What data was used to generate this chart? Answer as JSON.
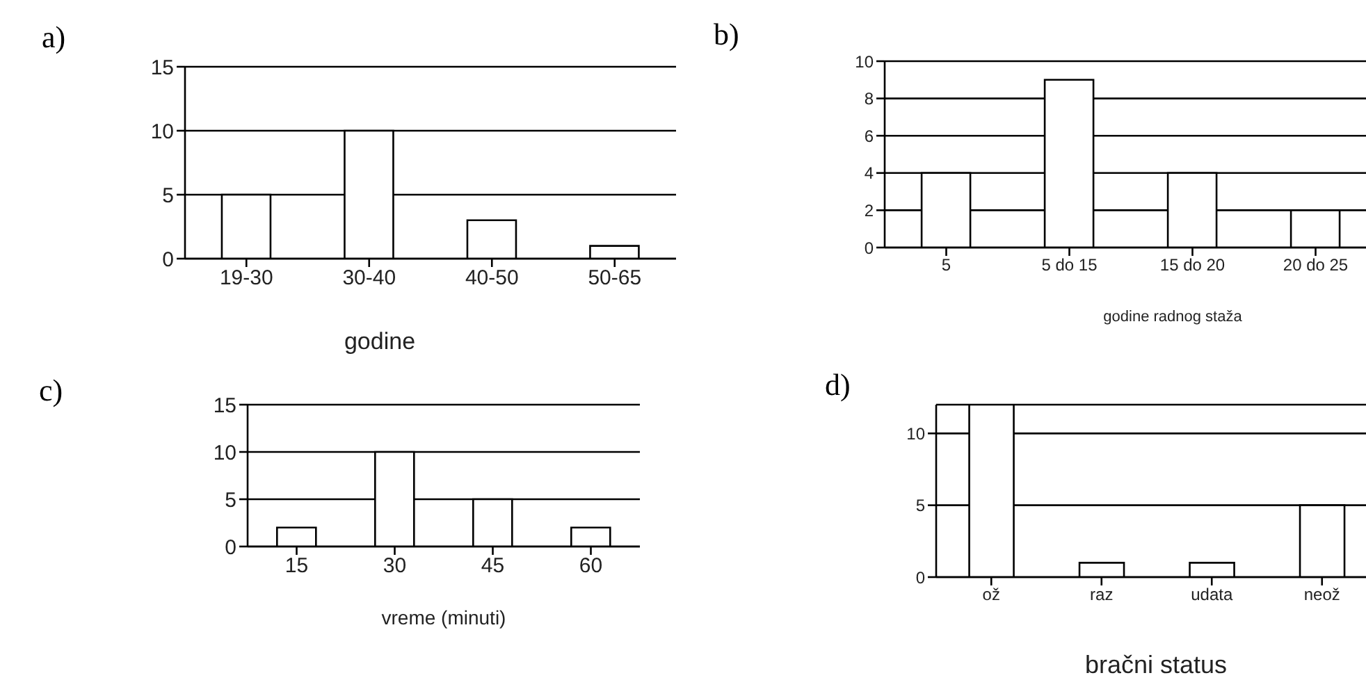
{
  "chart_data": [
    {
      "type": "bar",
      "title": "a)",
      "xlabel": "godine",
      "categories": [
        "19-30",
        "30-40",
        "40-50",
        "50-65"
      ],
      "values": [
        5,
        10,
        3,
        1
      ],
      "color": "#ffffff",
      "ylim": [
        0,
        15
      ],
      "yticks": [
        0,
        5,
        10,
        15
      ],
      "grid": "y",
      "legend": false
    },
    {
      "type": "bar",
      "title": "b)",
      "xlabel": "godine radnog staža",
      "categories": [
        "5",
        "5 do 15",
        "15 do 20",
        "20 do 25"
      ],
      "values": [
        4,
        9,
        4,
        2
      ],
      "color": "#ffffff",
      "ylim": [
        0,
        10
      ],
      "yticks": [
        0,
        2,
        4,
        6,
        8,
        10
      ],
      "grid": "y",
      "legend": false
    },
    {
      "type": "bar",
      "title": "c)",
      "xlabel": "vreme (minuti)",
      "categories": [
        "15",
        "30",
        "45",
        "60"
      ],
      "values": [
        2,
        10,
        5,
        2
      ],
      "color": "#ffffff",
      "ylim": [
        0,
        15
      ],
      "yticks": [
        0,
        5,
        10,
        15
      ],
      "grid": "y",
      "legend": false
    },
    {
      "type": "bar",
      "title": "d)",
      "xlabel": "bračni status",
      "categories": [
        "ož",
        "raz",
        "udata",
        "neož"
      ],
      "values": [
        12,
        1,
        1,
        5
      ],
      "color": "#ffffff",
      "ylim": [
        0,
        12
      ],
      "yticks": [
        0,
        5,
        10
      ],
      "grid": "y",
      "legend": false
    }
  ]
}
